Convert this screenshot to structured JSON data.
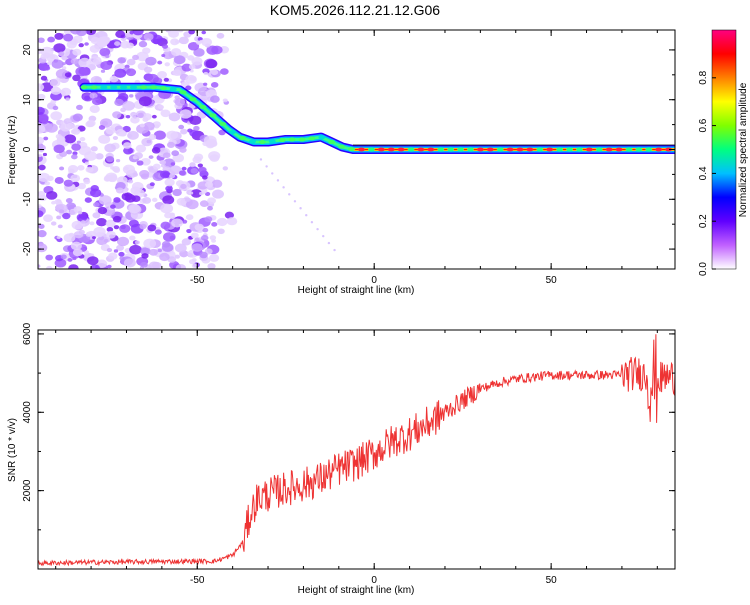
{
  "title": "KOM5.2026.112.21.12.G06",
  "chart_data": [
    {
      "type": "heatmap",
      "xlabel": "Height of straight line (km)",
      "ylabel": "Frequency (Hz)",
      "xlim": [
        -95,
        85
      ],
      "ylim": [
        -24,
        24
      ],
      "x_ticks": [
        -50,
        0,
        50
      ],
      "y_ticks": [
        -20,
        -10,
        0,
        10,
        20
      ],
      "colorbar": {
        "label": "Normalized spectral amplitude",
        "range": [
          0,
          1
        ],
        "ticks": [
          0.0,
          0.2,
          0.4,
          0.6,
          0.8
        ],
        "colors": [
          "#ffffff",
          "#c060ff",
          "#6000ff",
          "#0000ff",
          "#00c0ff",
          "#00ff80",
          "#80ff00",
          "#ffff00",
          "#ff8000",
          "#ff0000",
          "#ff0080"
        ]
      },
      "ridge": {
        "x": [
          -82,
          -70,
          -62,
          -55,
          -50,
          -45,
          -41,
          -38,
          -34,
          -30,
          -25,
          -20,
          -15,
          -12,
          -9,
          -6,
          0,
          10,
          30,
          50,
          85
        ],
        "y": [
          12.5,
          12.5,
          12.5,
          12.0,
          9.5,
          6.5,
          4.0,
          2.5,
          1.5,
          1.5,
          2.0,
          2.0,
          2.5,
          1.5,
          0.5,
          0.0,
          0.0,
          0.0,
          0.0,
          0.0,
          0.0
        ]
      }
    },
    {
      "type": "line",
      "xlabel": "Height of straight line (km)",
      "ylabel": "SNR (10 * v/v)",
      "xlim": [
        -95,
        85
      ],
      "ylim": [
        0,
        6100
      ],
      "x_ticks": [
        -50,
        0,
        50
      ],
      "y_ticks": [
        2000,
        4000,
        6000
      ],
      "color": "#ee3333",
      "x": [
        -95,
        -80,
        -60,
        -45,
        -40,
        -37,
        -35,
        -33,
        -30,
        -25,
        -20,
        -15,
        -10,
        -5,
        0,
        5,
        10,
        15,
        20,
        25,
        30,
        35,
        40,
        45,
        50,
        55,
        60,
        65,
        70,
        75,
        78,
        80,
        82,
        85
      ],
      "y": [
        150,
        170,
        190,
        200,
        350,
        700,
        1400,
        1800,
        1900,
        2050,
        2150,
        2300,
        2550,
        2700,
        2950,
        3250,
        3450,
        3700,
        4000,
        4300,
        4600,
        4750,
        4850,
        4900,
        4950,
        4950,
        4950,
        4950,
        4950,
        5000,
        4900,
        4800,
        4900,
        4900
      ]
    }
  ]
}
